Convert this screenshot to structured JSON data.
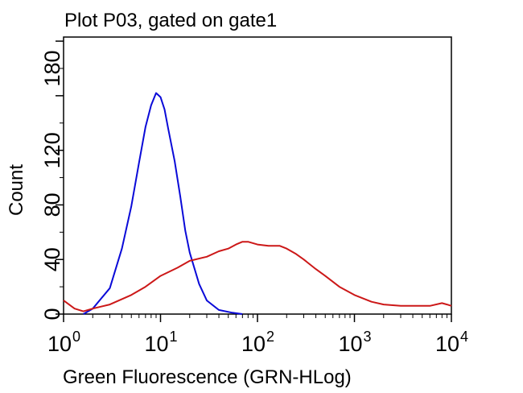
{
  "chart_data": {
    "type": "line",
    "title": "Plot P03, gated on gate1",
    "xlabel": "Green Fluorescence (GRN-HLog)",
    "ylabel": "Count",
    "x_scale": "log",
    "xlim": [
      1,
      10000
    ],
    "ylim": [
      0,
      203
    ],
    "x_ticks": [
      {
        "value": 1,
        "base": "10",
        "exp": "0"
      },
      {
        "value": 10,
        "base": "10",
        "exp": "1"
      },
      {
        "value": 100,
        "base": "10",
        "exp": "2"
      },
      {
        "value": 1000,
        "base": "10",
        "exp": "3"
      },
      {
        "value": 10000,
        "base": "10",
        "exp": "4"
      }
    ],
    "y_ticks": [
      0,
      40,
      80,
      120,
      180
    ],
    "grid": false,
    "series": [
      {
        "color": "#0a0ad8",
        "x": [
          1.6,
          2,
          3,
          4,
          5,
          6,
          7,
          8,
          9,
          10,
          11,
          12,
          14,
          16,
          18,
          20,
          25,
          30,
          40,
          55,
          70
        ],
        "values": [
          0,
          4,
          19,
          48,
          79,
          111,
          137,
          153,
          162,
          159,
          150,
          136,
          112,
          86,
          61,
          45,
          22,
          10,
          3,
          1,
          0
        ]
      },
      {
        "color": "#cc1818",
        "x": [
          1,
          1.3,
          1.6,
          2,
          3,
          5,
          7,
          10,
          15,
          20,
          30,
          40,
          50,
          60,
          70,
          80,
          100,
          130,
          170,
          200,
          250,
          300,
          400,
          500,
          700,
          1000,
          1500,
          2000,
          3000,
          4000,
          5000,
          6000,
          8000,
          9000,
          10000
        ],
        "values": [
          10,
          4,
          2,
          4,
          7,
          14,
          20,
          28,
          34,
          39,
          42,
          46,
          48,
          51,
          53,
          53,
          51,
          50,
          50,
          48,
          44,
          40,
          33,
          28,
          20,
          14,
          9,
          7,
          6,
          6,
          6,
          6,
          8,
          7,
          6
        ]
      }
    ]
  }
}
